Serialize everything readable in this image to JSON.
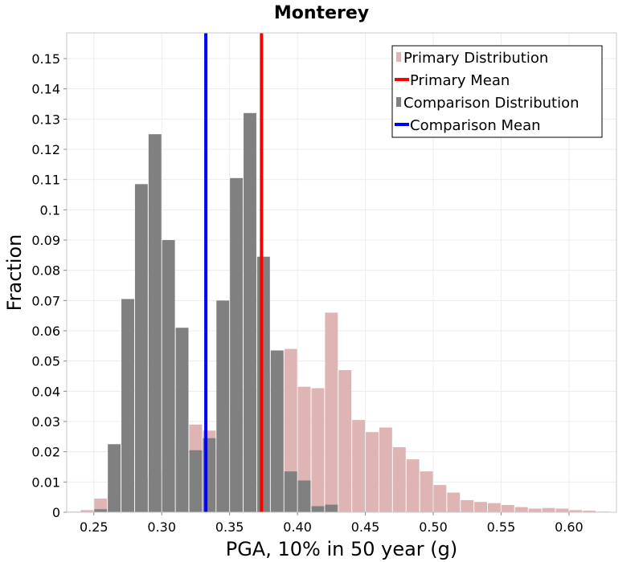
{
  "chart_data": {
    "type": "bar",
    "title": "Monterey",
    "xlabel": "PGA, 10% in 50 year (g)",
    "ylabel": "Fraction",
    "xlim": [
      0.23,
      0.635
    ],
    "ylim": [
      0,
      0.1585
    ],
    "xticks": [
      "0.25",
      "0.30",
      "0.35",
      "0.40",
      "0.45",
      "0.50",
      "0.55",
      "0.60"
    ],
    "yticks": [
      "0",
      "0.01",
      "0.02",
      "0.03",
      "0.04",
      "0.05",
      "0.06",
      "0.07",
      "0.08",
      "0.09",
      "0.1",
      "0.11",
      "0.12",
      "0.13",
      "0.14",
      "0.15"
    ],
    "bin_width": 0.01,
    "grid": true,
    "legend_position": "top-right",
    "series": [
      {
        "name": "Primary Distribution",
        "kind": "histogram",
        "color": "#deb4b4",
        "x": [
          0.235,
          0.245,
          0.255,
          0.265,
          0.275,
          0.285,
          0.295,
          0.305,
          0.315,
          0.325,
          0.335,
          0.345,
          0.355,
          0.365,
          0.375,
          0.385,
          0.395,
          0.405,
          0.415,
          0.425,
          0.435,
          0.445,
          0.455,
          0.465,
          0.475,
          0.485,
          0.495,
          0.505,
          0.515,
          0.525,
          0.535,
          0.545,
          0.555,
          0.565,
          0.575,
          0.585,
          0.595,
          0.605,
          0.615,
          0.625
        ],
        "values": [
          0.0002,
          0.0007,
          0.0045,
          0.006,
          0.008,
          0.011,
          0.013,
          0.018,
          0.024,
          0.029,
          0.027,
          0.021,
          0.035,
          0.041,
          0.046,
          0.051,
          0.054,
          0.0415,
          0.041,
          0.066,
          0.047,
          0.0305,
          0.0265,
          0.028,
          0.0215,
          0.0175,
          0.0135,
          0.009,
          0.0065,
          0.004,
          0.0034,
          0.003,
          0.0024,
          0.0017,
          0.0012,
          0.0014,
          0.0012,
          0.0007,
          0.0005,
          0.0002
        ]
      },
      {
        "name": "Comparison Distribution",
        "kind": "histogram",
        "color": "#808080",
        "x": [
          0.255,
          0.265,
          0.275,
          0.285,
          0.295,
          0.305,
          0.315,
          0.325,
          0.335,
          0.345,
          0.355,
          0.365,
          0.375,
          0.385,
          0.395,
          0.405,
          0.415,
          0.425
        ],
        "values": [
          0.001,
          0.0225,
          0.0705,
          0.1085,
          0.125,
          0.09,
          0.061,
          0.0205,
          0.0245,
          0.07,
          0.1105,
          0.132,
          0.0845,
          0.0535,
          0.0135,
          0.0105,
          0.002,
          0.0025
        ]
      },
      {
        "name": "Primary Mean",
        "kind": "vline",
        "color": "#ff0000",
        "value": 0.3735
      },
      {
        "name": "Comparison Mean",
        "kind": "vline",
        "color": "#0000ff",
        "value": 0.3325
      }
    ]
  }
}
